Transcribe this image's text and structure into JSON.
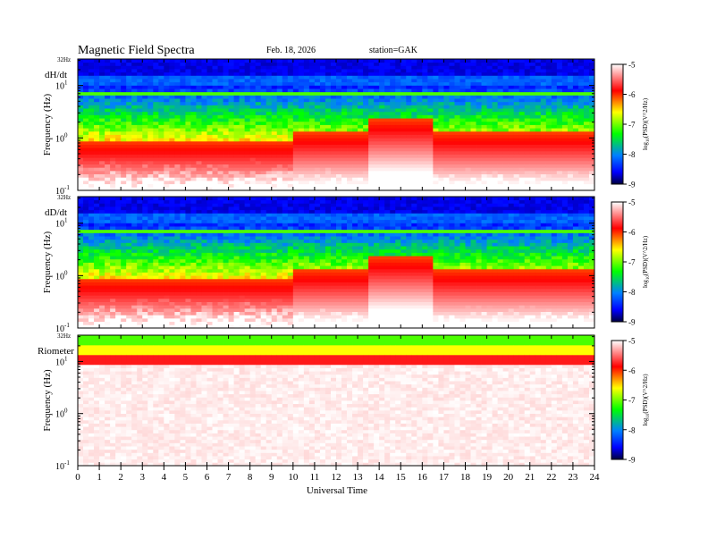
{
  "header": {
    "title": "Magnetic Field Spectra",
    "date": "Feb. 18, 2026",
    "station": "station=GAK"
  },
  "chart_data": {
    "type": "heatmap",
    "xlabel": "Universal Time",
    "x_ticks": [
      "0",
      "1",
      "2",
      "3",
      "4",
      "5",
      "6",
      "7",
      "8",
      "9",
      "10",
      "11",
      "12",
      "13",
      "14",
      "15",
      "16",
      "17",
      "18",
      "19",
      "20",
      "21",
      "22",
      "23",
      "24"
    ],
    "xlim": [
      0,
      24
    ],
    "y_scale": "log",
    "ylabel": "Frequency (Hz)",
    "ylim": [
      0.1,
      32
    ],
    "y_ticks": [
      {
        "base": "10",
        "exp": "-1"
      },
      {
        "base": "10",
        "exp": "0"
      },
      {
        "base": "10",
        "exp": "1"
      }
    ],
    "y_top_label": "32Hz",
    "colorbar": {
      "label_prefix": "log",
      "label_sub": "10",
      "label_rest": "(PSD)(V^2/Hz)",
      "min": -9,
      "max": -5,
      "ticks": [
        "-5",
        "-6",
        "-7",
        "-8",
        "-9"
      ]
    },
    "panels": [
      {
        "name": "dH/dt"
      },
      {
        "name": "dD/dt"
      },
      {
        "name": "Riometer"
      }
    ]
  }
}
